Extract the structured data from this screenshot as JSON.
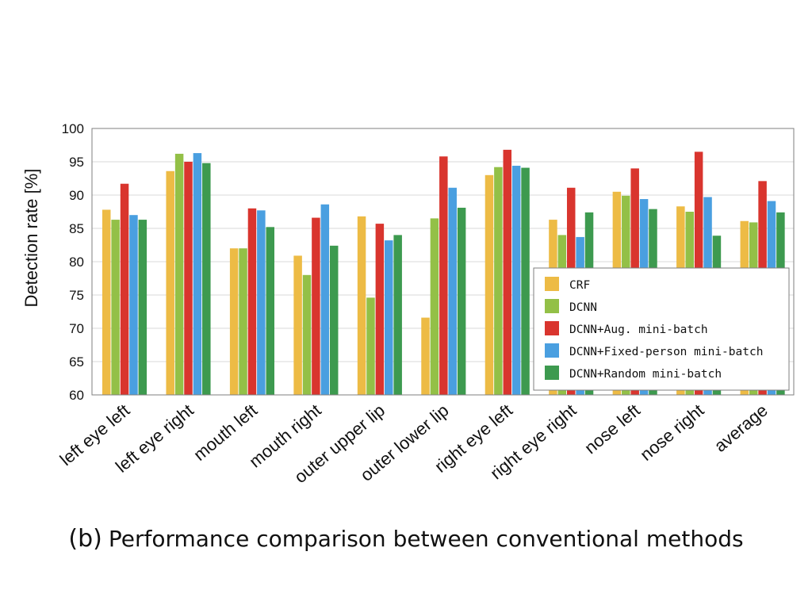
{
  "caption": {
    "tag": "(b)",
    "text": "Performance comparison between conventional methods"
  },
  "chart_data": {
    "type": "bar",
    "ylabel": "Detection rate [%]",
    "xlabel": "",
    "ylim": [
      60,
      100
    ],
    "yticks": [
      60,
      65,
      70,
      75,
      80,
      85,
      90,
      95,
      100
    ],
    "grid": true,
    "legend_position": "bottom-right",
    "categories": [
      "left eye left",
      "left eye right",
      "mouth left",
      "mouth right",
      "outer upper lip",
      "outer lower lip",
      "right eye left",
      "right eye right",
      "nose left",
      "nose right",
      "average"
    ],
    "series": [
      {
        "name": "CRF",
        "color": "#EDBB45",
        "values": [
          87.8,
          93.6,
          82.0,
          80.9,
          86.8,
          71.6,
          93.0,
          86.3,
          90.5,
          88.3,
          86.1
        ]
      },
      {
        "name": "DCNN",
        "color": "#93C047",
        "values": [
          86.3,
          96.2,
          82.0,
          78.0,
          74.6,
          86.5,
          94.2,
          84.0,
          89.9,
          87.5,
          85.9
        ]
      },
      {
        "name": "DCNN+Aug. mini-batch",
        "color": "#D9352E",
        "values": [
          91.7,
          95.0,
          88.0,
          86.6,
          85.7,
          95.8,
          96.8,
          91.1,
          94.0,
          96.5,
          92.1
        ]
      },
      {
        "name": "DCNN+Fixed-person mini-batch",
        "color": "#4A9FE0",
        "values": [
          87.0,
          96.3,
          87.7,
          88.6,
          83.2,
          91.1,
          94.4,
          83.7,
          89.4,
          89.7,
          89.1
        ]
      },
      {
        "name": "DCNN+Random mini-batch",
        "color": "#3D9A4F",
        "values": [
          86.3,
          94.8,
          85.2,
          82.4,
          84.0,
          88.1,
          94.1,
          87.4,
          87.9,
          83.9,
          87.4
        ]
      }
    ]
  }
}
